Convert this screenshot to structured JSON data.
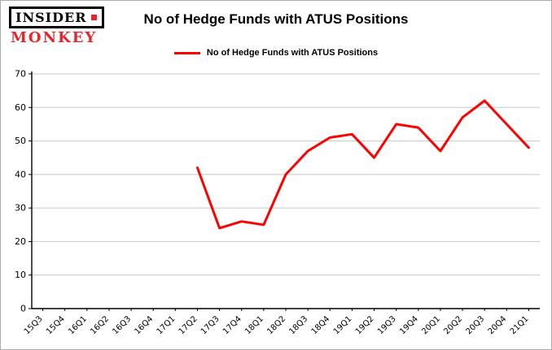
{
  "logo": {
    "top": "INSIDER",
    "bottom": "MONKEY",
    "accent_color": "#e8262a"
  },
  "header": {
    "title": "No of Hedge Funds with ATUS Positions"
  },
  "legend": {
    "label": "No of Hedge Funds with ATUS Positions",
    "color": "#ff0000"
  },
  "chart_data": {
    "type": "line",
    "title": "No of Hedge Funds with ATUS Positions",
    "categories": [
      "15Q3",
      "15Q4",
      "16Q1",
      "16Q2",
      "16Q3",
      "16Q4",
      "17Q1",
      "17Q2",
      "17Q3",
      "17Q4",
      "18Q1",
      "18Q2",
      "18Q3",
      "18Q4",
      "19Q1",
      "19Q2",
      "19Q3",
      "19Q4",
      "20Q1",
      "20Q2",
      "20Q3",
      "20Q4",
      "21Q1"
    ],
    "series": [
      {
        "name": "No of Hedge Funds with ATUS Positions",
        "color": "#ff0000",
        "values": [
          null,
          null,
          null,
          null,
          null,
          null,
          null,
          42,
          24,
          26,
          25,
          40,
          47,
          51,
          52,
          45,
          55,
          54,
          47,
          57,
          62,
          55,
          48
        ]
      }
    ],
    "ylim": [
      0,
      70
    ],
    "yticks": [
      0,
      10,
      20,
      30,
      40,
      50,
      60,
      70
    ],
    "grid": true,
    "grid_color": "#c8c8c8",
    "legend_position": "top"
  }
}
